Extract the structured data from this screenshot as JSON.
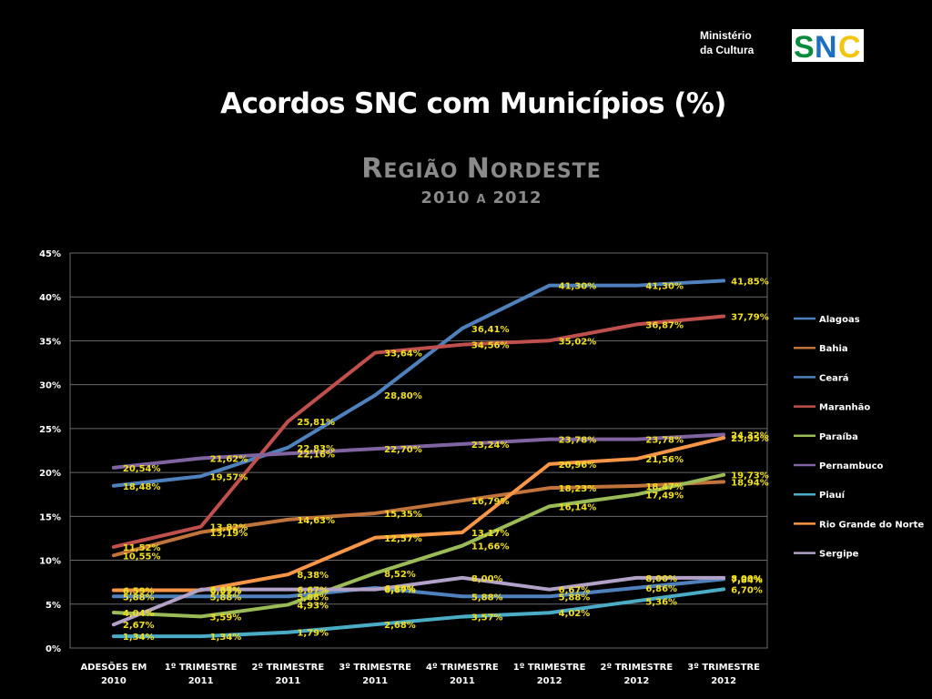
{
  "logo": {
    "text_line1": "Ministério",
    "text_line2": "da Cultura",
    "brand": "SNC",
    "brand_colors": [
      "#0a8a3c",
      "#1d6fc2",
      "#f2c511"
    ]
  },
  "title": "Acordos SNC com Municípios (%)",
  "subtitle_line1": "Região Nordeste",
  "subtitle_line2": "2010 a 2012",
  "chart_data": {
    "type": "line",
    "categories": [
      [
        "ADESÕES EM",
        "2010"
      ],
      [
        "1º TRIMESTRE",
        "2011"
      ],
      [
        "2º TRIMESTRE",
        "2011"
      ],
      [
        "3º TRIMESTRE",
        "2011"
      ],
      [
        "4º TRIMESTRE",
        "2011"
      ],
      [
        "1º TRIMESTRE",
        "2012"
      ],
      [
        "2º TRIMESTRE",
        "2012"
      ],
      [
        "3º TRIMESTRE",
        "2012"
      ]
    ],
    "y_ticks": [
      "0%",
      "5%",
      "10%",
      "15%",
      "20%",
      "25%",
      "30%",
      "35%",
      "40%",
      "45%"
    ],
    "ylim": [
      0,
      45
    ],
    "grid": true,
    "legend_position": "right",
    "data_label_color": "#f0e020",
    "series": [
      {
        "name": "Alagoas",
        "color": "#4f81bd",
        "values": [
          5.88,
          5.88,
          5.88,
          6.86,
          5.88,
          5.88,
          6.86,
          7.84
        ],
        "labels": [
          "5,88%",
          "5,88%",
          "5,88%",
          "6,86%",
          "5,88%",
          "5,88%",
          "6,86%",
          "7,84%"
        ]
      },
      {
        "name": "Bahia",
        "color": "#c0743c",
        "values": [
          10.55,
          13.19,
          14.63,
          15.35,
          16.79,
          18.23,
          18.47,
          18.94
        ],
        "labels": [
          "10,55%",
          "13,19%",
          "14,63%",
          "15,35%",
          "16,79%",
          "18,23%",
          "18,47%",
          "18,94%"
        ]
      },
      {
        "name": "Ceará",
        "color": "#4f81bd",
        "values": [
          18.48,
          19.57,
          22.83,
          28.8,
          36.41,
          41.3,
          41.3,
          41.85
        ],
        "labels": [
          "18,48%",
          "19,57%",
          "22,83%",
          "28,80%",
          "36,41%",
          "41,30%",
          "41,30%",
          "41,85%"
        ]
      },
      {
        "name": "Maranhão",
        "color": "#c0504d",
        "values": [
          11.52,
          13.82,
          25.81,
          33.64,
          34.56,
          35.02,
          36.87,
          37.79
        ],
        "labels": [
          "11,52%",
          "13,82%",
          "25,81%",
          "33,64%",
          "34,56%",
          "35,02%",
          "36,87%",
          "37,79%"
        ]
      },
      {
        "name": "Paraíba",
        "color": "#9bbb59",
        "values": [
          4.04,
          3.59,
          4.93,
          8.52,
          11.66,
          16.14,
          17.49,
          19.73
        ],
        "labels": [
          "4,04%",
          "3,59%",
          "4,93%",
          "8,52%",
          "11,66%",
          "16,14%",
          "17,49%",
          "19,73%"
        ]
      },
      {
        "name": "Pernambuco",
        "color": "#8064a2",
        "values": [
          20.54,
          21.62,
          22.16,
          22.7,
          23.24,
          23.78,
          23.78,
          24.32
        ],
        "labels": [
          "20,54%",
          "21,62%",
          "22,16%",
          "22,70%",
          "23,24%",
          "23,78%",
          "23,78%",
          "24,32%"
        ]
      },
      {
        "name": "Piauí",
        "color": "#4bacc6",
        "values": [
          1.34,
          1.34,
          1.79,
          2.68,
          3.57,
          4.02,
          5.36,
          6.7
        ],
        "labels": [
          "1,34%",
          "1,34%",
          "1,79%",
          "2,68%",
          "3,57%",
          "4,02%",
          "5,36%",
          "6,70%"
        ]
      },
      {
        "name": "Rio Grande do Norte",
        "color": "#f79646",
        "values": [
          6.59,
          6.59,
          8.38,
          12.57,
          13.17,
          20.96,
          21.56,
          23.95
        ],
        "labels": [
          "6,59%",
          "6,59%",
          "8,38%",
          "12,57%",
          "13,17%",
          "20,96%",
          "21,56%",
          "23,95%"
        ]
      },
      {
        "name": "Sergipe",
        "color": "#b3a2c7",
        "values": [
          2.67,
          6.67,
          6.67,
          6.67,
          8.0,
          6.67,
          8.0,
          8.0
        ],
        "labels": [
          "2,67%",
          "6,67%",
          "6,67%",
          "6,67%",
          "8,00%",
          "6,67%",
          "8,00%",
          "8,00%"
        ]
      }
    ]
  }
}
